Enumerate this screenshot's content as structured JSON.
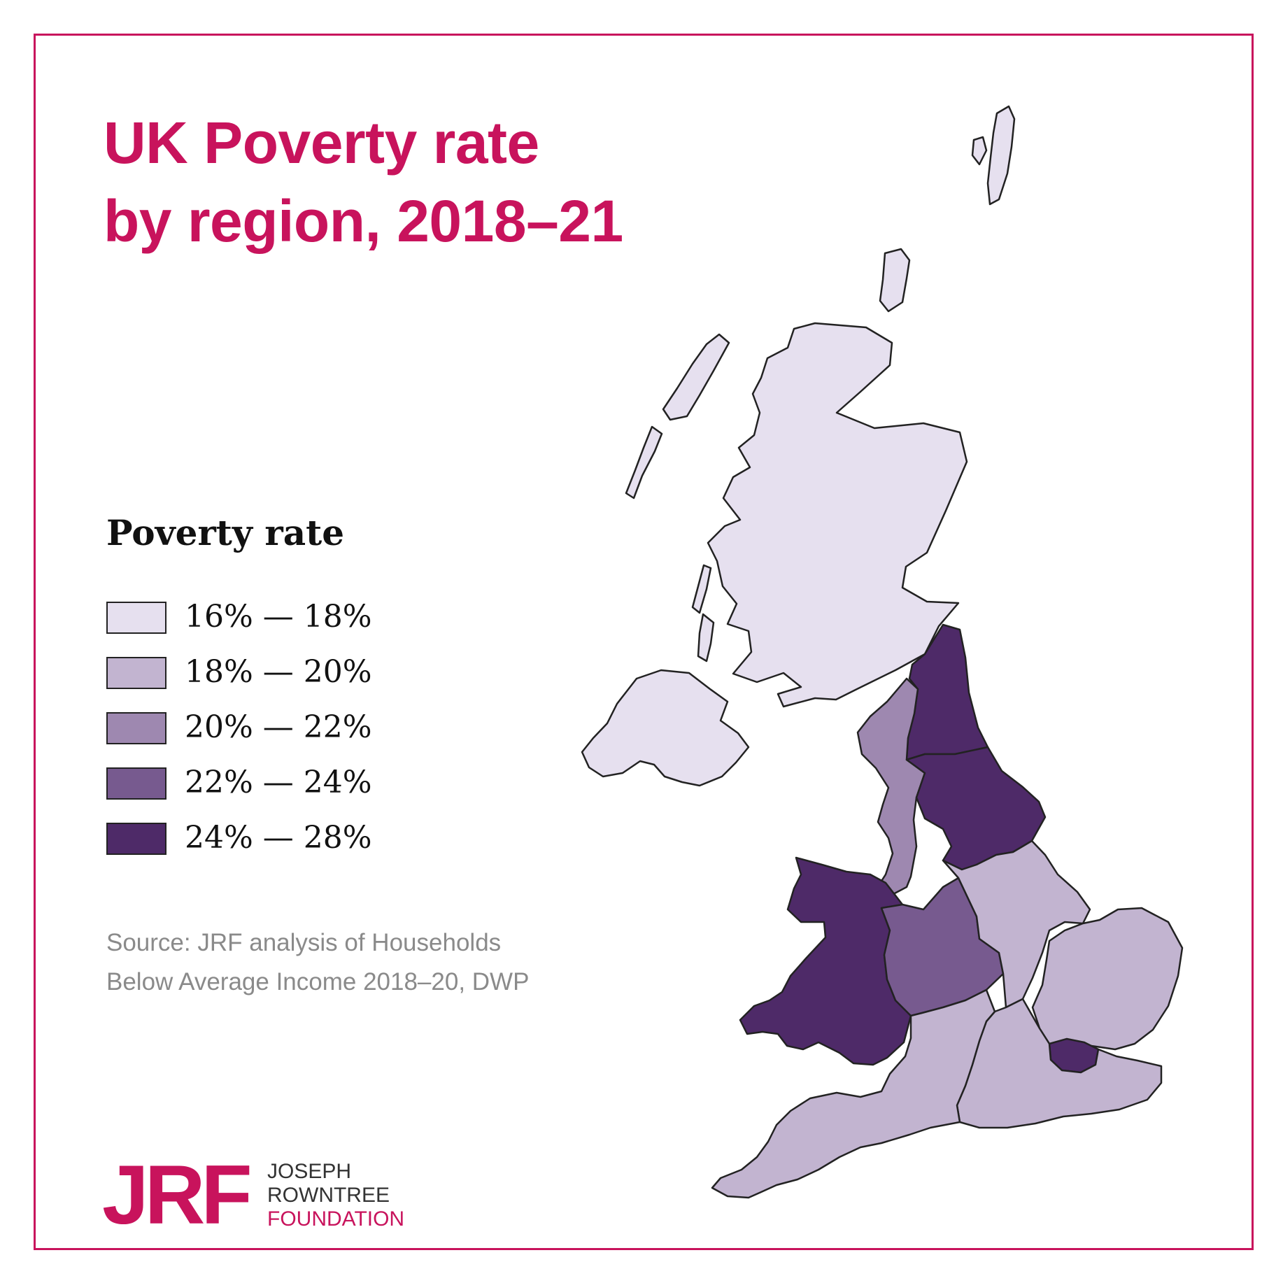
{
  "title": {
    "line1": "UK Poverty rate",
    "line2": "by region, 2018–21"
  },
  "legend": {
    "heading": "Poverty rate",
    "items": [
      {
        "label": "16% — 18%",
        "color": "#e6e0ef"
      },
      {
        "label": "18% — 20%",
        "color": "#c2b4d0"
      },
      {
        "label": "20% — 22%",
        "color": "#9e88b0"
      },
      {
        "label": "22% — 24%",
        "color": "#775a8f"
      },
      {
        "label": "24% — 28%",
        "color": "#4e2a68"
      }
    ]
  },
  "source": {
    "line1": "Source: JRF analysis of Households",
    "line2": "Below Average Income 2018–20, DWP"
  },
  "logo": {
    "mark": "JRF",
    "line1": "JOSEPH",
    "line2": "ROWNTREE",
    "line3": "FOUNDATION"
  },
  "map": {
    "regions": [
      {
        "name": "Scotland",
        "band": 0
      },
      {
        "name": "Northern Ireland",
        "band": 0
      },
      {
        "name": "North East",
        "band": 4
      },
      {
        "name": "North West",
        "band": 2
      },
      {
        "name": "Yorkshire and the Humber",
        "band": 4
      },
      {
        "name": "Wales",
        "band": 4
      },
      {
        "name": "West Midlands",
        "band": 3
      },
      {
        "name": "East Midlands",
        "band": 1
      },
      {
        "name": "East of England",
        "band": 1
      },
      {
        "name": "London",
        "band": 4
      },
      {
        "name": "South East",
        "band": 1
      },
      {
        "name": "South West",
        "band": 1
      }
    ]
  },
  "colors": {
    "accent": "#c8135c",
    "border": "#c8135c",
    "outline": "#222222"
  }
}
